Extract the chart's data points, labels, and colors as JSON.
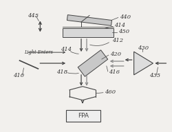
{
  "bg_color": "#f2f0ed",
  "line_color": "#444444",
  "gray_color": "#888888",
  "label_color": "#333333",
  "figsize": [
    2.5,
    1.92
  ],
  "dpi": 100
}
